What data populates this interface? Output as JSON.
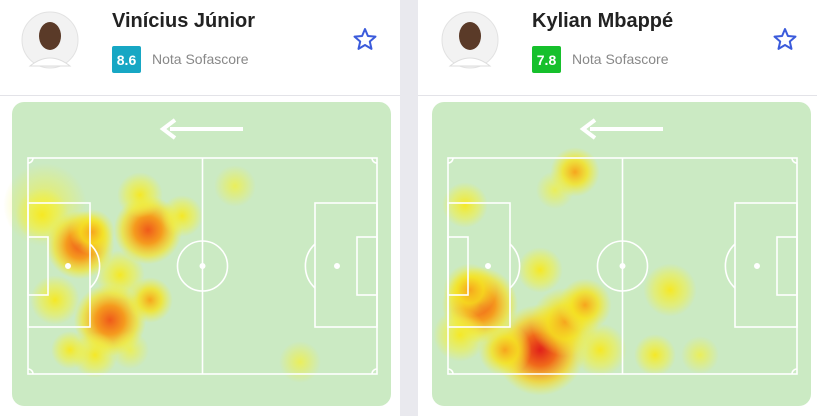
{
  "cards": [
    {
      "name": "Vinícius Júnior",
      "rating": "8.6",
      "rating_label": "Nota Sofascore"
    },
    {
      "name": "Kylian Mbappé",
      "rating": "7.8",
      "rating_label": "Nota Sofascore"
    }
  ]
}
